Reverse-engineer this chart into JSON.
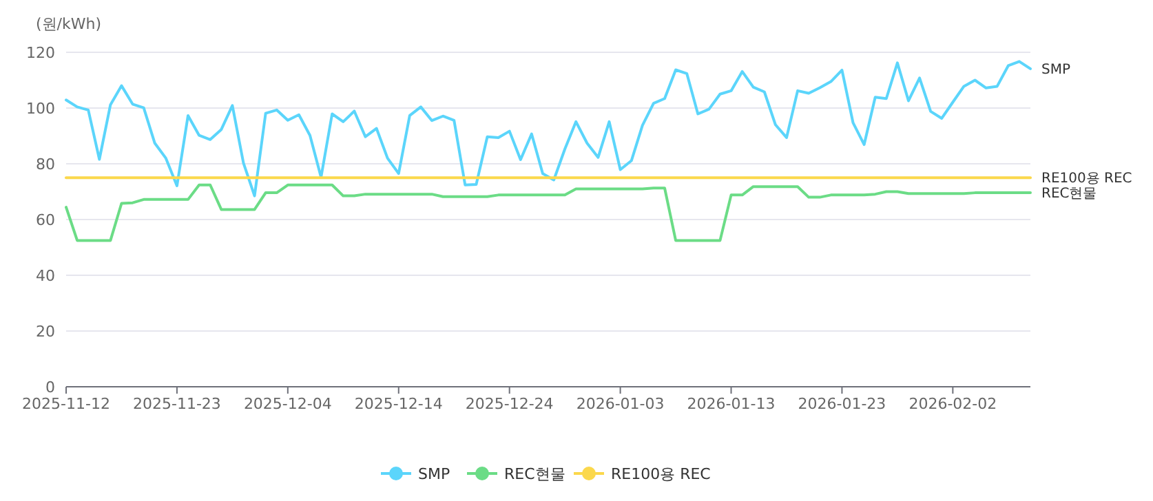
{
  "chart_data": {
    "type": "line",
    "ylabel": "(원/kWh)",
    "categories": [
      "2025-11-12",
      null,
      null,
      null,
      null,
      null,
      null,
      null,
      null,
      null,
      "2025-11-23",
      null,
      null,
      null,
      null,
      null,
      null,
      null,
      null,
      null,
      "2025-12-04",
      null,
      null,
      null,
      null,
      null,
      null,
      null,
      null,
      null,
      "2025-12-14",
      null,
      null,
      null,
      null,
      null,
      null,
      null,
      null,
      null,
      "2025-12-24",
      null,
      null,
      null,
      null,
      null,
      null,
      null,
      null,
      null,
      "2026-01-03",
      null,
      null,
      null,
      null,
      null,
      null,
      null,
      null,
      null,
      "2026-01-13",
      null,
      null,
      null,
      null,
      null,
      null,
      null,
      null,
      null,
      "2026-01-23",
      null,
      null,
      null,
      null,
      null,
      null,
      null,
      null,
      null,
      "2026-02-02",
      null,
      null,
      null,
      null,
      null,
      null,
      null
    ],
    "series": [
      {
        "name": "SMP",
        "color": "#5bd5fb",
        "values": [
          102.9,
          100.4,
          99.3,
          81.6,
          101.2,
          108,
          101.4,
          100.1,
          87.4,
          82,
          72.1,
          97.3,
          90.2,
          88.7,
          92.3,
          100.9,
          80.3,
          68.5,
          98.1,
          99.3,
          95.6,
          97.6,
          90.2,
          75.2,
          97.9,
          95.1,
          98.9,
          89.7,
          92.7,
          82,
          76.5,
          97.3,
          100.4,
          95.5,
          97.1,
          95.6,
          72.4,
          72.6,
          89.7,
          89.4,
          91.7,
          81.5,
          90.7,
          76.5,
          74.2,
          85.3,
          95.1,
          87.4,
          82.3,
          95.1,
          77.9,
          81.1,
          93.8,
          101.7,
          103.4,
          113.7,
          112.4,
          97.9,
          99.6,
          105,
          106.2,
          113.1,
          107.5,
          105.8,
          94,
          89.4,
          106.2,
          105.3,
          107.3,
          109.5,
          113.6,
          94.7,
          86.9,
          103.9,
          103.4,
          116.2,
          102.6,
          110.8,
          98.8,
          96.3,
          102.1,
          107.8,
          110,
          107.2,
          107.8,
          115.2,
          116.7,
          114.1
        ]
      },
      {
        "name": "REC현물",
        "color": "#6bdc86",
        "values": [
          64.4,
          52.5,
          52.5,
          52.5,
          52.5,
          65.8,
          66,
          67.2,
          67.2,
          67.2,
          67.2,
          67.2,
          72.4,
          72.4,
          63.6,
          63.6,
          63.6,
          63.6,
          69.6,
          69.6,
          72.4,
          72.4,
          72.4,
          72.4,
          72.4,
          68.5,
          68.5,
          69.1,
          69.1,
          69.1,
          69.1,
          69.1,
          69.1,
          69.1,
          68.2,
          68.2,
          68.2,
          68.2,
          68.2,
          68.8,
          68.8,
          68.8,
          68.8,
          68.8,
          68.8,
          68.8,
          71,
          71,
          71,
          71,
          71,
          71,
          71,
          71.3,
          71.3,
          52.5,
          52.5,
          52.5,
          52.5,
          52.5,
          68.8,
          68.8,
          71.8,
          71.8,
          71.8,
          71.8,
          71.8,
          68,
          68,
          68.8,
          68.8,
          68.8,
          68.8,
          69.1,
          70,
          70,
          69.3,
          69.3,
          69.3,
          69.3,
          69.3,
          69.3,
          69.6,
          69.6,
          69.6,
          69.6,
          69.6,
          69.6
        ]
      },
      {
        "name": "RE100용 REC",
        "color": "#fbd84c",
        "values": [
          75,
          75,
          75,
          75,
          75,
          75,
          75,
          75,
          75,
          75,
          75,
          75,
          75,
          75,
          75,
          75,
          75,
          75,
          75,
          75,
          75,
          75,
          75,
          75,
          75,
          75,
          75,
          75,
          75,
          75,
          75,
          75,
          75,
          75,
          75,
          75,
          75,
          75,
          75,
          75,
          75,
          75,
          75,
          75,
          75,
          75,
          75,
          75,
          75,
          75,
          75,
          75,
          75,
          75,
          75,
          75,
          75,
          75,
          75,
          75,
          75,
          75,
          75,
          75,
          75,
          75,
          75,
          75,
          75,
          75,
          75,
          75,
          75,
          75,
          75,
          75,
          75,
          75,
          75,
          75,
          75,
          75,
          75,
          75,
          75,
          75,
          75,
          75
        ]
      }
    ],
    "ylim": [
      0,
      120
    ],
    "yticks": [
      0,
      20,
      40,
      60,
      80,
      100,
      120
    ],
    "grid": "y",
    "legend": "bottom"
  }
}
